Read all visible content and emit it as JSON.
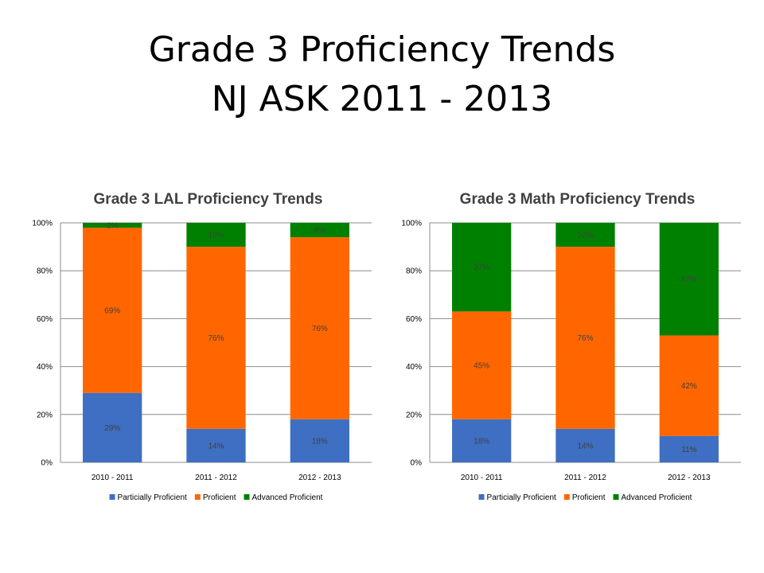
{
  "slide": {
    "title_line1": "Grade 3 Proficiency Trends",
    "title_line2": "NJ ASK 2011 - 2013"
  },
  "colors": {
    "partially_proficient": "#3E6FC2",
    "proficient": "#FF6600",
    "advanced_proficient": "#008000"
  },
  "chart_data": [
    {
      "type": "bar",
      "stacked": true,
      "title": "Grade 3 LAL Proficiency Trends",
      "categories": [
        "2010 - 2011",
        "2011 - 2012",
        "2012 - 2013"
      ],
      "y_ticks": [
        "0%",
        "20%",
        "40%",
        "60%",
        "80%",
        "100%"
      ],
      "ylim": [
        0,
        100
      ],
      "grid": true,
      "legend_position": "bottom",
      "series": [
        {
          "name": "Particially Proficient",
          "values": [
            29,
            14,
            18
          ],
          "labels": [
            "29%",
            "14%",
            "18%"
          ],
          "color": "#3E6FC2"
        },
        {
          "name": "Proficient",
          "values": [
            69,
            76,
            76
          ],
          "labels": [
            "69%",
            "76%",
            "76%"
          ],
          "color": "#FF6600"
        },
        {
          "name": "Advanced Proficient",
          "values": [
            2,
            10,
            6
          ],
          "labels": [
            "2%",
            "10%",
            "6%"
          ],
          "color": "#008000"
        }
      ]
    },
    {
      "type": "bar",
      "stacked": true,
      "title": "Grade 3 Math Proficiency Trends",
      "categories": [
        "2010 - 2011",
        "2011 - 2012",
        "2012 - 2013"
      ],
      "y_ticks": [
        "0%",
        "20%",
        "40%",
        "60%",
        "80%",
        "100%"
      ],
      "ylim": [
        0,
        100
      ],
      "grid": true,
      "legend_position": "bottom",
      "series": [
        {
          "name": "Particially Proficient",
          "values": [
            18,
            14,
            11
          ],
          "labels": [
            "18%",
            "14%",
            "11%"
          ],
          "color": "#3E6FC2"
        },
        {
          "name": "Proficient",
          "values": [
            45,
            76,
            42
          ],
          "labels": [
            "45%",
            "76%",
            "42%"
          ],
          "color": "#FF6600"
        },
        {
          "name": "Advanced Proficient",
          "values": [
            37,
            10,
            47
          ],
          "labels": [
            "37%",
            "10%",
            "47%"
          ],
          "color": "#008000"
        }
      ]
    }
  ]
}
